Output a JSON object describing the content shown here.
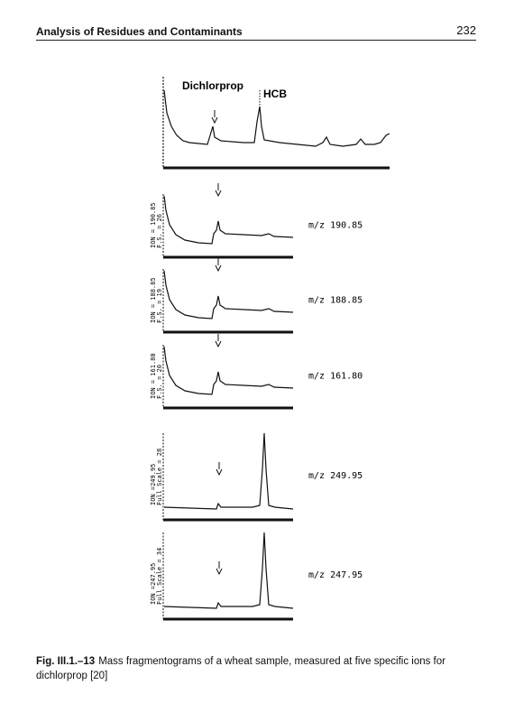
{
  "header": {
    "title": "Analysis of Residues and Contaminants",
    "page_number": "232"
  },
  "figure": {
    "top_panel": {
      "peak_labels": [
        "Dichlorprop",
        "HCB"
      ]
    },
    "panels": [
      {
        "ion_label": "ION = 190.85",
        "scale_label": "F.S. = 26",
        "mz_label": "m/z 190.85"
      },
      {
        "ion_label": "ION = 188.85",
        "scale_label": "F.S. = 19",
        "mz_label": "m/z 188.85"
      },
      {
        "ion_label": "ION = 161.80",
        "scale_label": "F.S. = 20",
        "mz_label": "m/z 161.80"
      },
      {
        "ion_label": "ION =249.95",
        "scale_label": "Full Scale = 28",
        "mz_label": "m/z 249.95"
      },
      {
        "ion_label": "ION =247.95",
        "scale_label": "Full Scale = 34",
        "mz_label": "m/z 247.95"
      }
    ]
  },
  "caption": {
    "label": "Fig. III.1.–13",
    "text": "Mass fragmentograms of a wheat sample, measured at five specific ions for dichlorprop [20]"
  }
}
